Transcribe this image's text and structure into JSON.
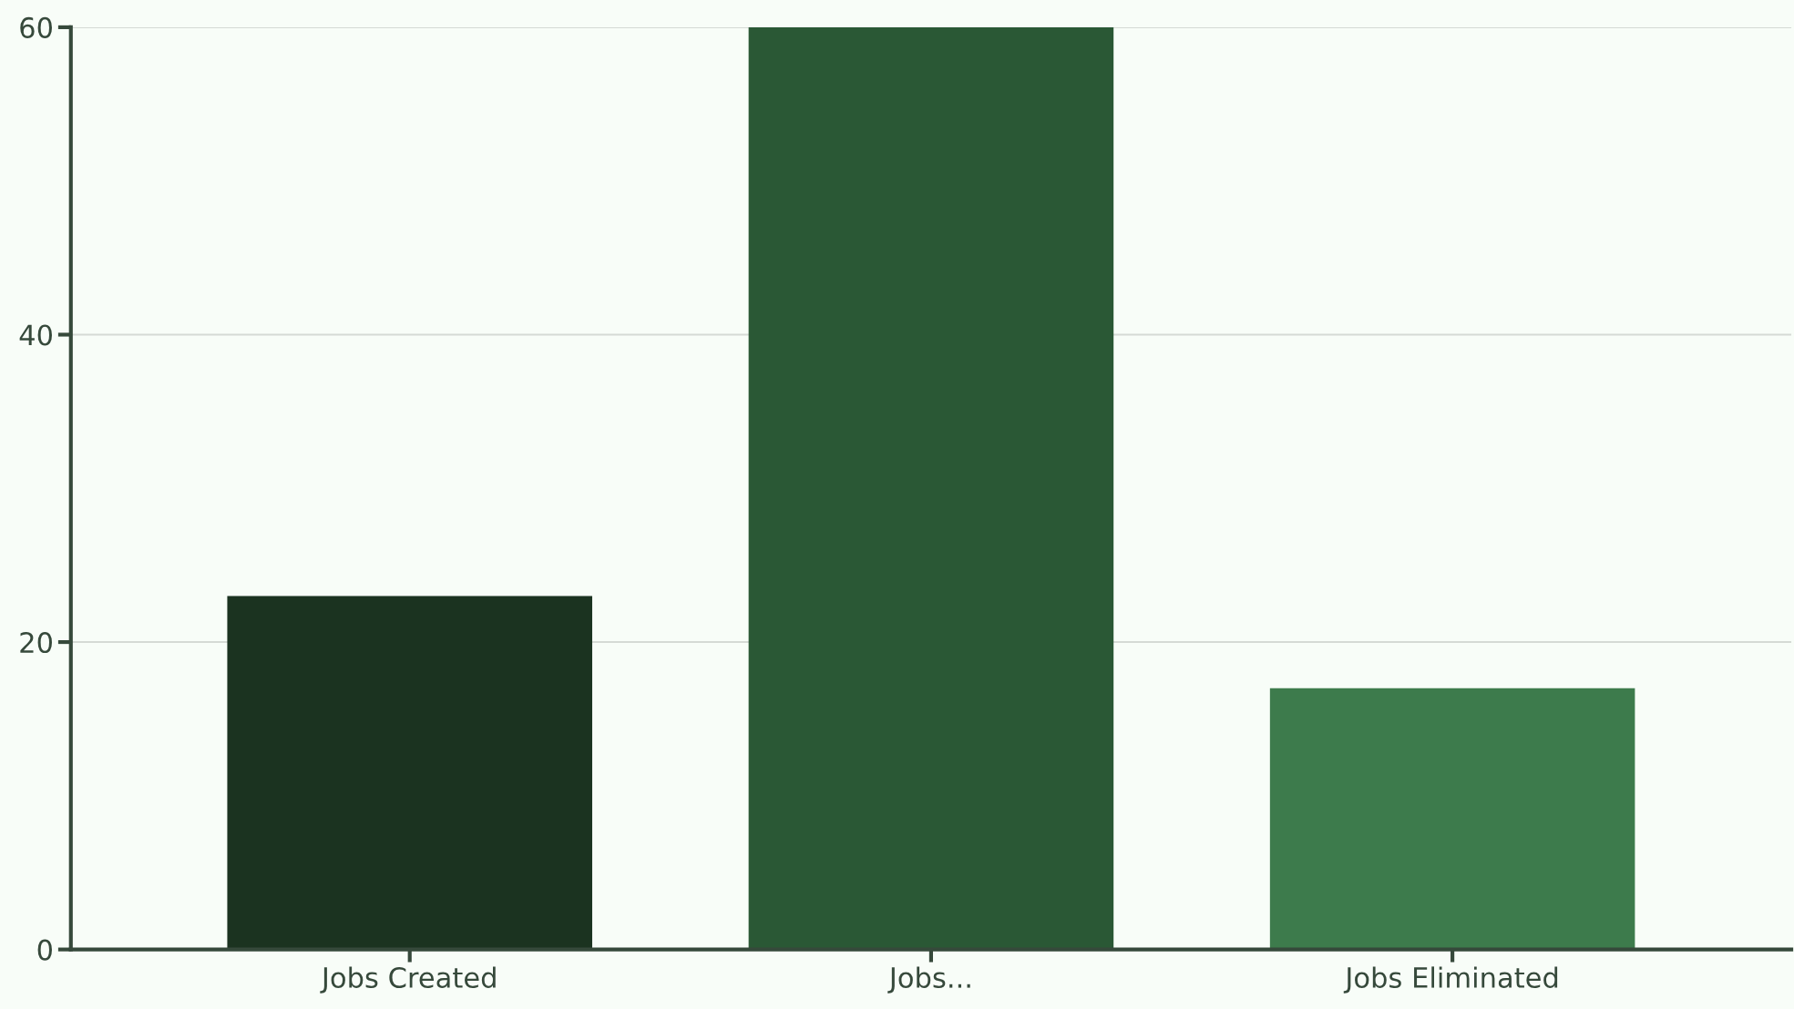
{
  "chart_data": {
    "type": "bar",
    "categories": [
      "Jobs Created",
      "Jobs...",
      "Jobs Eliminated"
    ],
    "values": [
      23,
      60,
      17
    ],
    "colors": [
      "#1b3320",
      "#2a5835",
      "#3d7b4c"
    ],
    "ylim": [
      0,
      60
    ],
    "yticks": [
      0,
      20,
      40,
      60
    ],
    "grid": "y",
    "legend": false
  }
}
